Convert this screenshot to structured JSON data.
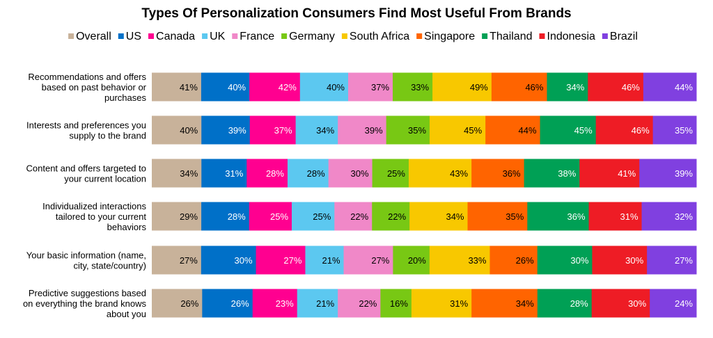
{
  "chart_data": {
    "type": "bar",
    "stacking": "100% stacked horizontal",
    "title": "Types Of Personalization Consumers Find Most Useful From Brands",
    "legend_position": "top",
    "grid": false,
    "categories": [
      [
        "Recommendations and offers",
        "based on past behavior or",
        "purchases"
      ],
      [
        "Interests and preferences you",
        "supply to the brand"
      ],
      [
        "Content and offers targeted to",
        "your current location"
      ],
      [
        "Individualized interactions",
        "tailored to your current",
        "behaviors"
      ],
      [
        "Your basic information (name,",
        "city, state/country)"
      ],
      [
        "Predictive suggestions based",
        "on everything the brand knows",
        "about you"
      ]
    ],
    "series": [
      {
        "name": "Overall",
        "color": "#c8b29a",
        "label_color": "#000000",
        "values": [
          41,
          40,
          34,
          29,
          27,
          26
        ]
      },
      {
        "name": "US",
        "color": "#0070c8",
        "label_color": "#ffffff",
        "values": [
          40,
          39,
          31,
          28,
          30,
          26
        ]
      },
      {
        "name": "Canada",
        "color": "#ff0090",
        "label_color": "#ffffff",
        "values": [
          42,
          37,
          28,
          25,
          27,
          23
        ]
      },
      {
        "name": "UK",
        "color": "#5cc8f0",
        "label_color": "#000000",
        "values": [
          40,
          34,
          28,
          25,
          21,
          21
        ]
      },
      {
        "name": "France",
        "color": "#f088c8",
        "label_color": "#000000",
        "values": [
          37,
          39,
          30,
          22,
          27,
          22
        ]
      },
      {
        "name": "Germany",
        "color": "#78c814",
        "label_color": "#000000",
        "values": [
          33,
          35,
          25,
          22,
          20,
          16
        ]
      },
      {
        "name": "South Africa",
        "color": "#f8c800",
        "label_color": "#000000",
        "values": [
          49,
          45,
          43,
          34,
          33,
          31
        ]
      },
      {
        "name": "Singapore",
        "color": "#ff6400",
        "label_color": "#000000",
        "values": [
          46,
          44,
          36,
          35,
          26,
          34
        ]
      },
      {
        "name": "Thailand",
        "color": "#00a055",
        "label_color": "#ffffff",
        "values": [
          34,
          45,
          38,
          36,
          30,
          28
        ]
      },
      {
        "name": "Indonesia",
        "color": "#ee1c25",
        "label_color": "#ffffff",
        "values": [
          46,
          46,
          41,
          31,
          30,
          30
        ]
      },
      {
        "name": "Brazil",
        "color": "#8040e0",
        "label_color": "#ffffff",
        "values": [
          44,
          35,
          39,
          32,
          27,
          24
        ]
      }
    ],
    "value_suffix": "%"
  }
}
